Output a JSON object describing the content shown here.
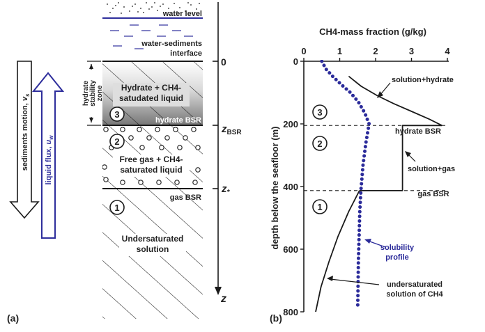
{
  "colors": {
    "ink": "#1a1a1a",
    "accent_blue": "#2e2e9c",
    "solubility": "#2b2b9a",
    "hydrate_dark": "#7a7a7a"
  },
  "panel_a": {
    "label": "(a)",
    "water_level": "water level",
    "interface_line1": "water-sediments",
    "interface_line2": "interface",
    "stability_line1": "hydrate",
    "stability_line2": "stability",
    "stability_line3": "zone",
    "hydrate_text_line1": "Hydrate + CH4-",
    "hydrate_text_line2": "satudated liquid",
    "hydrate_bsr": "hydrate BSR",
    "freegas_line1": "Free gas + CH4-",
    "freegas_line2": "saturated liquid",
    "gas_bsr": "gas BSR",
    "unsat_line1": "Undersaturated",
    "unsat_line2": "solution",
    "zone1": "1",
    "zone2": "2",
    "zone3": "3",
    "sediments_motion": "sediments motion,",
    "sediments_symbol": "v",
    "sediments_sub": "s",
    "liquid_flux": "liquid flux,",
    "liquid_symbol": "u",
    "liquid_sub": "w",
    "axis_zero": "0",
    "z_bsr": "z",
    "z_bsr_sub": "BSR",
    "z_star": "z",
    "z_star_sub": "*",
    "z_axis": "z"
  },
  "panel_b": {
    "label": "(b)",
    "zone1": "1",
    "zone2": "2",
    "zone3": "3",
    "hydrate_bsr": "hydrate BSR",
    "gas_bsr": "gas BSR",
    "curve_solution_hydrate": "solution+hydrate",
    "curve_solution_gas": "solution+gas",
    "curve_solubility_line1": "solubility",
    "curve_solubility_line2": "profile",
    "curve_undersat_line1": "undersaturated",
    "curve_undersat_line2": "solution of CH4"
  },
  "chart_data": {
    "type": "line",
    "title": "",
    "xlabel": "CH4-mass fraction (g/kg)",
    "ylabel": "depth below the seafloor (m)",
    "xlim": [
      0,
      4
    ],
    "ylim": [
      0,
      800
    ],
    "y_inverted": true,
    "x_axis_position": "top",
    "x_ticks": [
      0,
      1,
      2,
      3,
      4
    ],
    "y_ticks": [
      0,
      200,
      400,
      600,
      800
    ],
    "reference_lines": [
      {
        "name": "hydrate BSR",
        "y": 205
      },
      {
        "name": "gas BSR",
        "y": 413
      }
    ],
    "series": [
      {
        "name": "solubility profile",
        "style": "dotted",
        "x": [
          0.5,
          0.62,
          0.82,
          1.05,
          1.3,
          1.52,
          1.7,
          1.82,
          1.73,
          1.65,
          1.59,
          1.56,
          1.54,
          1.52,
          1.51,
          1.5
        ],
        "y": [
          0,
          25,
          50,
          75,
          100,
          130,
          165,
          200,
          260,
          330,
          413,
          480,
          560,
          640,
          720,
          790
        ]
      },
      {
        "name": "solution+hydrate",
        "style": "solid",
        "x": [
          1.25,
          1.6,
          2.05,
          2.5,
          3.0,
          3.5,
          3.85
        ],
        "y": [
          48,
          80,
          110,
          135,
          160,
          185,
          205
        ]
      },
      {
        "name": "solution+gas",
        "style": "solid",
        "x": [
          3.85,
          2.75,
          2.75,
          1.55
        ],
        "y": [
          205,
          205,
          413,
          413
        ]
      },
      {
        "name": "undersaturated solution of CH4",
        "style": "solid",
        "x": [
          1.55,
          1.25,
          0.95,
          0.7,
          0.48,
          0.33
        ],
        "y": [
          413,
          480,
          560,
          640,
          720,
          800
        ]
      }
    ]
  }
}
